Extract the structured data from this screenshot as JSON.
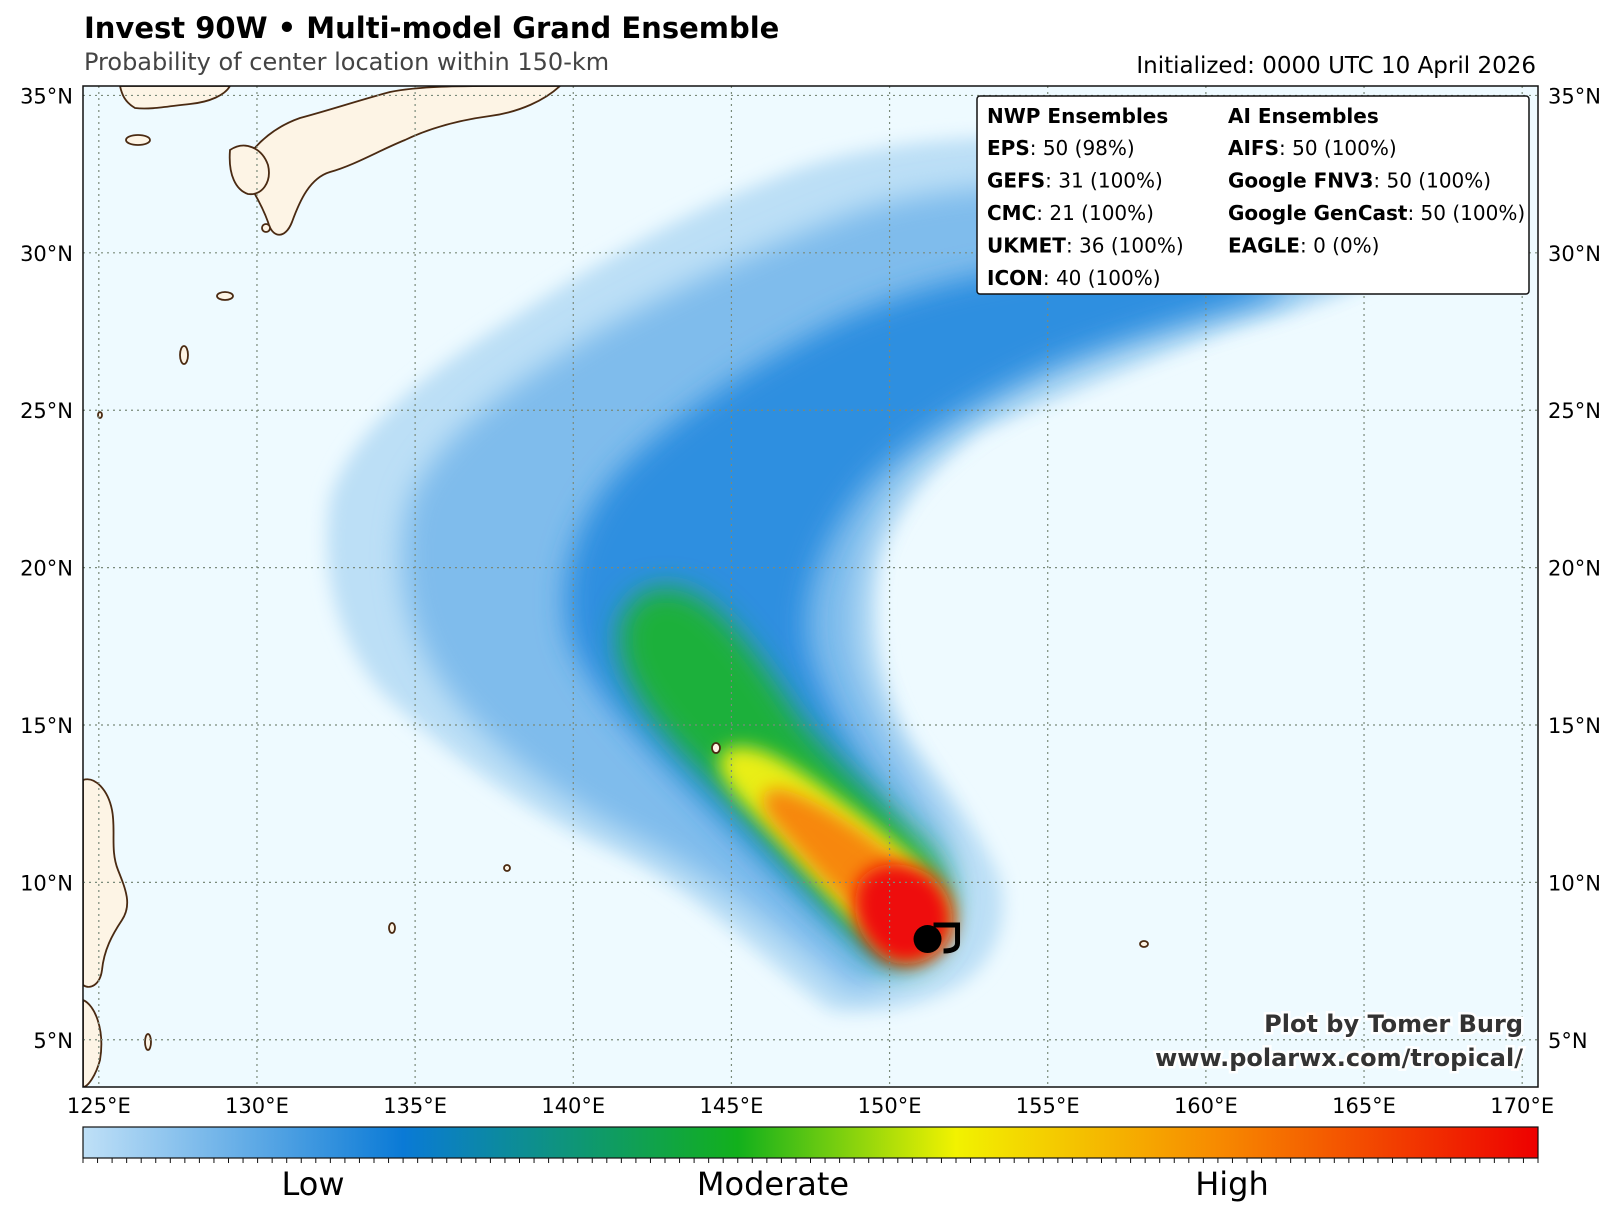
{
  "header": {
    "title": "Invest 90W • Multi-model Grand Ensemble",
    "subtitle": "Probability of center location within 150-km",
    "initialized": "Initialized: 0000 UTC 10 April 2026"
  },
  "map": {
    "lon_range": [
      124.5,
      170.5
    ],
    "lat_range": [
      3.5,
      35.3
    ],
    "lon_ticks": [
      {
        "value": 125,
        "label": "125°E"
      },
      {
        "value": 130,
        "label": "130°E"
      },
      {
        "value": 135,
        "label": "135°E"
      },
      {
        "value": 140,
        "label": "140°E"
      },
      {
        "value": 145,
        "label": "145°E"
      },
      {
        "value": 150,
        "label": "150°E"
      },
      {
        "value": 155,
        "label": "155°E"
      },
      {
        "value": 160,
        "label": "160°E"
      },
      {
        "value": 165,
        "label": "165°E"
      },
      {
        "value": 170,
        "label": "170°E"
      }
    ],
    "lat_ticks": [
      {
        "value": 5,
        "label": "5°N"
      },
      {
        "value": 10,
        "label": "10°N"
      },
      {
        "value": 15,
        "label": "15°N"
      },
      {
        "value": 20,
        "label": "20°N"
      },
      {
        "value": 25,
        "label": "25°N"
      },
      {
        "value": 30,
        "label": "30°N"
      },
      {
        "value": 35,
        "label": "35°N"
      }
    ],
    "grid": true,
    "storm_position": {
      "lon": 151.2,
      "lat": 8.2
    },
    "colors": {
      "ocean": "#eefaff",
      "land": "#fdf4e5",
      "coast": "#4a2a12",
      "grid": "#7a8a7a"
    }
  },
  "legend": {
    "columns": [
      {
        "header": "NWP Ensembles",
        "entries": [
          {
            "model": "EPS",
            "value": ": 50 (98%)"
          },
          {
            "model": "GEFS",
            "value": ": 31 (100%)"
          },
          {
            "model": "CMC",
            "value": ": 21 (100%)"
          },
          {
            "model": "UKMET",
            "value": ": 36 (100%)"
          },
          {
            "model": "ICON",
            "value": ": 40 (100%)"
          }
        ]
      },
      {
        "header": "AI Ensembles",
        "entries": [
          {
            "model": "AIFS",
            "value": ": 50 (100%)"
          },
          {
            "model": "Google FNV3",
            "value": ": 50 (100%)"
          },
          {
            "model": "Google GenCast",
            "value": ": 50 (100%)"
          },
          {
            "model": "EAGLE",
            "value": ": 0 (0%)"
          }
        ]
      }
    ]
  },
  "credit": {
    "line1": "Plot by Tomer Burg",
    "line2": "www.polarwx.com/tropical/"
  },
  "colorbar": {
    "labels": [
      "Low",
      "Moderate",
      "High"
    ],
    "colors": [
      "#bfe0f7",
      "#0a7ad6",
      "#12b01c",
      "#f2f200",
      "#f78a00",
      "#ee0000"
    ]
  }
}
